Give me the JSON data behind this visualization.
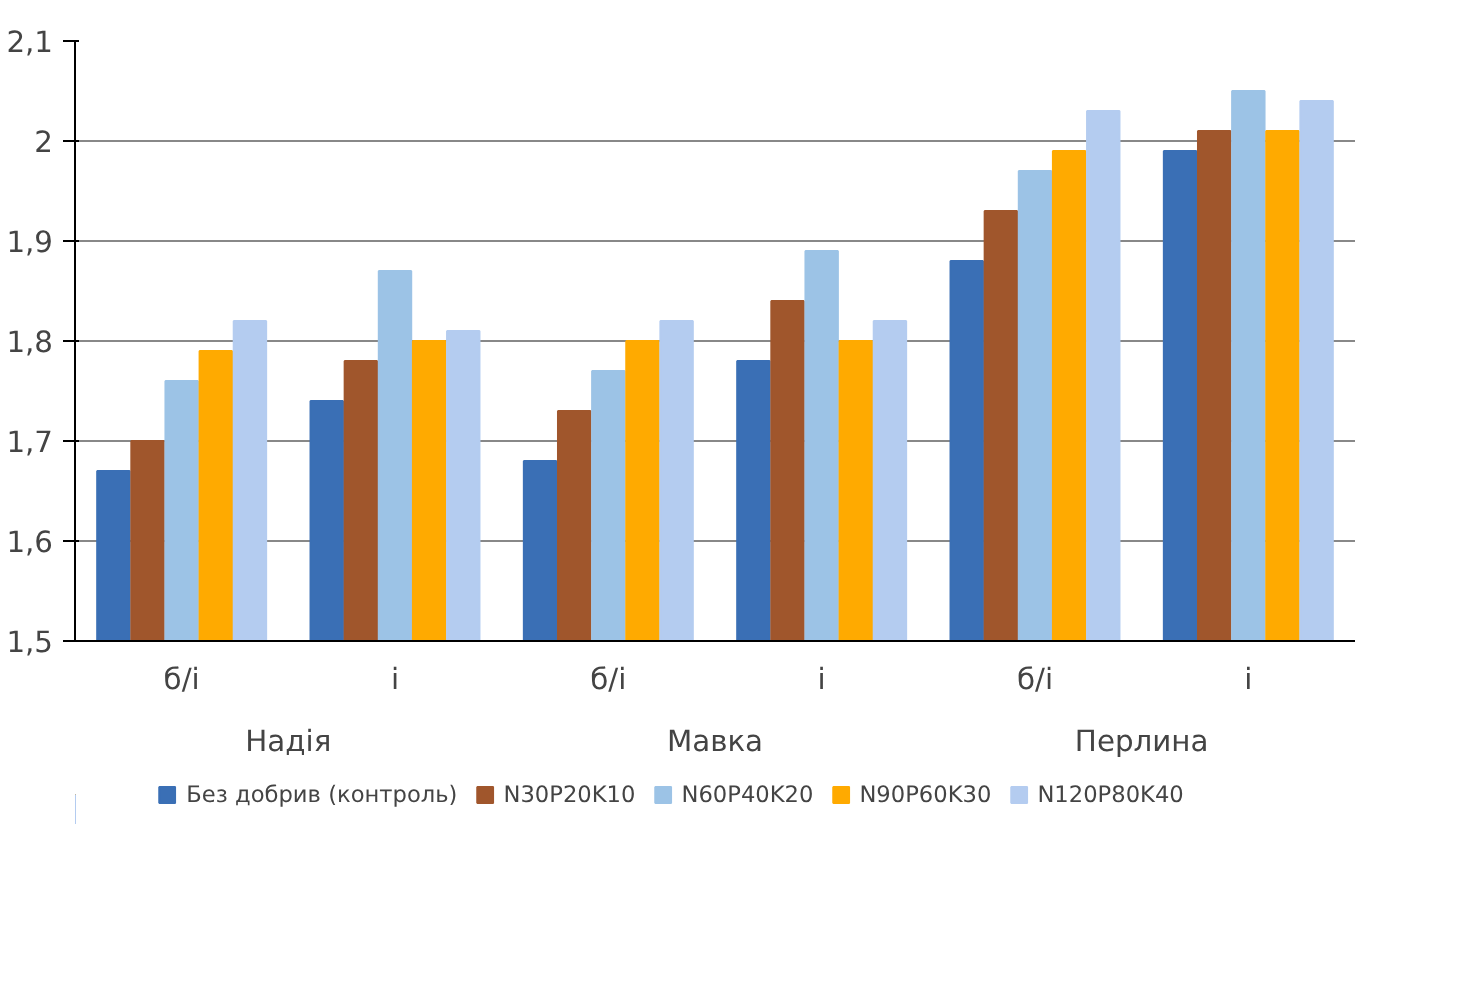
{
  "chart_data": {
    "type": "bar",
    "categories": [
      "б/і",
      "і",
      "б/і",
      "і",
      "б/і",
      "і"
    ],
    "annotations": [
      "Надія",
      "Мавка",
      "Перлина"
    ],
    "series": [
      {
        "name": "Без добрив (контроль)",
        "color": "#3a6fb5",
        "values": [
          1.67,
          1.74,
          1.68,
          1.78,
          1.88,
          1.99
        ]
      },
      {
        "name": "N30P20K10",
        "color": "#a0562c",
        "values": [
          1.7,
          1.78,
          1.73,
          1.84,
          1.93,
          2.01
        ]
      },
      {
        "name": "N60P40K20",
        "color": "#9cc3e6",
        "values": [
          1.76,
          1.87,
          1.77,
          1.89,
          1.97,
          2.05
        ]
      },
      {
        "name": "N90P60K30",
        "color": "#ffaa00",
        "values": [
          1.79,
          1.8,
          1.8,
          1.8,
          1.99,
          2.01
        ]
      },
      {
        "name": "N120P80K40",
        "color": "#b4ccf0",
        "values": [
          1.82,
          1.81,
          1.82,
          1.82,
          2.03,
          2.04
        ]
      }
    ],
    "ylim": [
      1.5,
      2.1
    ],
    "yticks": [
      {
        "value": 1.5,
        "label": "1,5"
      },
      {
        "value": 1.6,
        "label": "1,6"
      },
      {
        "value": 1.7,
        "label": "1,7"
      },
      {
        "value": 1.8,
        "label": "1,8"
      },
      {
        "value": 1.9,
        "label": "1,9"
      },
      2,
      {
        "value": 2.1,
        "label": "2,1"
      }
    ],
    "grid": "y",
    "legend": "bottom"
  }
}
